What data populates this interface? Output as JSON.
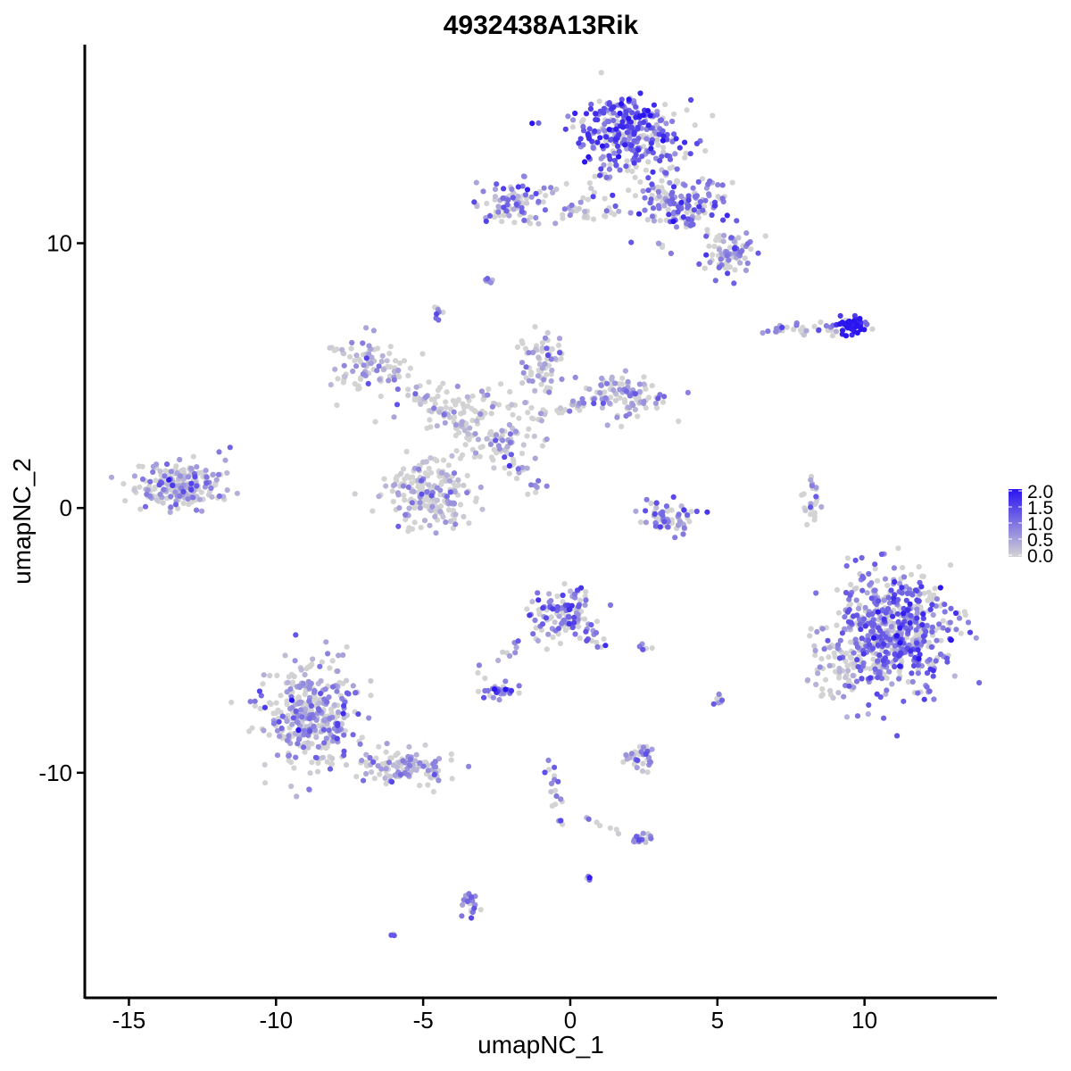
{
  "chart_data": {
    "type": "scatter",
    "title": "4932438A13Rik",
    "xlabel": "umapNC_1",
    "ylabel": "umapNC_2",
    "xlim": [
      -16.5,
      14.5
    ],
    "ylim": [
      -18.5,
      17.5
    ],
    "x_ticks": [
      -15,
      -10,
      -5,
      0,
      5,
      10
    ],
    "x_tick_labels": [
      "-15",
      "-10",
      "-5",
      "0",
      "5",
      "10"
    ],
    "y_ticks": [
      -10,
      0,
      10
    ],
    "y_tick_labels": [
      "-10",
      "0",
      "10"
    ],
    "grid": false,
    "legend_position": "right",
    "color_scale": {
      "low_color": "#d3d3d3",
      "high_color": "#2a14f0",
      "min": 0.0,
      "max": 2.0,
      "breaks": [
        0.0,
        0.5,
        1.0,
        1.5,
        2.0
      ],
      "break_labels": [
        "0.0",
        "0.5",
        "1.0",
        "1.5",
        "2.0"
      ]
    },
    "clusters": [
      {
        "cx": 2.0,
        "cy": 14.2,
        "sx": 1.1,
        "sy": 1.0,
        "n": 320,
        "expr": 1.05
      },
      {
        "cx": 3.8,
        "cy": 11.6,
        "sx": 1.0,
        "sy": 0.6,
        "n": 160,
        "expr": 0.75
      },
      {
        "cx": 5.4,
        "cy": 9.6,
        "sx": 0.6,
        "sy": 0.45,
        "n": 80,
        "expr": 0.55
      },
      {
        "cx": -2.0,
        "cy": 11.5,
        "sx": 0.8,
        "sy": 0.5,
        "n": 90,
        "expr": 0.6
      },
      {
        "cx": 0.5,
        "cy": 11.1,
        "sx": 0.9,
        "sy": 0.2,
        "n": 30,
        "expr": 0.35
      },
      {
        "cx": 9.6,
        "cy": 6.9,
        "sx": 0.4,
        "sy": 0.2,
        "n": 60,
        "expr": 1.6
      },
      {
        "cx": 8.0,
        "cy": 6.8,
        "sx": 0.8,
        "sy": 0.12,
        "n": 30,
        "expr": 0.7
      },
      {
        "cx": -6.7,
        "cy": 5.3,
        "sx": 0.9,
        "sy": 0.6,
        "n": 90,
        "expr": 0.3
      },
      {
        "cx": -1.0,
        "cy": 5.5,
        "sx": 0.5,
        "sy": 0.7,
        "n": 70,
        "expr": 0.4
      },
      {
        "cx": 1.8,
        "cy": 4.2,
        "sx": 0.9,
        "sy": 0.5,
        "n": 110,
        "expr": 0.45
      },
      {
        "cx": -3.8,
        "cy": 3.8,
        "sx": 1.5,
        "sy": 0.6,
        "n": 90,
        "expr": 0.2
      },
      {
        "cx": -2.5,
        "cy": 2.5,
        "sx": 1.2,
        "sy": 0.7,
        "n": 80,
        "expr": 0.2
      },
      {
        "cx": -4.9,
        "cy": 0.6,
        "sx": 0.9,
        "sy": 0.7,
        "n": 200,
        "expr": 0.2
      },
      {
        "cx": -13.3,
        "cy": 0.9,
        "sx": 0.9,
        "sy": 0.55,
        "n": 240,
        "expr": 0.45
      },
      {
        "cx": 3.3,
        "cy": -0.4,
        "sx": 0.7,
        "sy": 0.4,
        "n": 60,
        "expr": 0.8
      },
      {
        "cx": 8.2,
        "cy": 0.2,
        "sx": 0.2,
        "sy": 0.6,
        "n": 25,
        "expr": 0.6
      },
      {
        "cx": 11.0,
        "cy": -4.6,
        "sx": 1.2,
        "sy": 1.4,
        "n": 620,
        "expr": 0.8
      },
      {
        "cx": 8.9,
        "cy": -6.0,
        "sx": 0.6,
        "sy": 0.8,
        "n": 60,
        "expr": 0.3
      },
      {
        "cx": -0.3,
        "cy": -4.0,
        "sx": 0.7,
        "sy": 0.6,
        "n": 120,
        "expr": 0.75
      },
      {
        "cx": -8.8,
        "cy": -7.8,
        "sx": 1.0,
        "sy": 1.2,
        "n": 380,
        "expr": 0.55
      },
      {
        "cx": -5.5,
        "cy": -9.8,
        "sx": 0.9,
        "sy": 0.4,
        "n": 120,
        "expr": 0.4
      },
      {
        "cx": -2.4,
        "cy": -6.9,
        "sx": 0.35,
        "sy": 0.2,
        "n": 35,
        "expr": 0.8
      },
      {
        "cx": 2.4,
        "cy": -9.4,
        "sx": 0.35,
        "sy": 0.3,
        "n": 35,
        "expr": 0.5
      },
      {
        "cx": 2.4,
        "cy": -12.5,
        "sx": 0.3,
        "sy": 0.15,
        "n": 15,
        "expr": 0.6
      },
      {
        "cx": -3.4,
        "cy": -14.9,
        "sx": 0.15,
        "sy": 0.4,
        "n": 25,
        "expr": 0.75
      },
      {
        "cx": 5.0,
        "cy": -7.3,
        "sx": 0.1,
        "sy": 0.2,
        "n": 8,
        "expr": 0.4
      },
      {
        "cx": -2.8,
        "cy": 8.6,
        "sx": 0.1,
        "sy": 0.08,
        "n": 8,
        "expr": 0.7
      },
      {
        "cx": -4.5,
        "cy": 7.4,
        "sx": 0.1,
        "sy": 0.2,
        "n": 8,
        "expr": 0.8
      },
      {
        "cx": -6.0,
        "cy": -16.1,
        "sx": 0.06,
        "sy": 0.05,
        "n": 4,
        "expr": 0.8
      },
      {
        "cx": 0.6,
        "cy": -14.0,
        "sx": 0.05,
        "sy": 0.05,
        "n": 4,
        "expr": 0.9
      }
    ],
    "branches": [
      {
        "x0": -2.5,
        "y0": 2.4,
        "x1": -1.1,
        "y1": 0.7,
        "n": 25,
        "expr": 0.6
      },
      {
        "x0": -5.5,
        "y0": 4.5,
        "x1": -3.3,
        "y1": 2.8,
        "n": 25,
        "expr": 0.25
      },
      {
        "x0": -1.2,
        "y0": 3.4,
        "x1": 0.5,
        "y1": 4.0,
        "n": 25,
        "expr": 0.3
      },
      {
        "x0": -3.2,
        "y0": -6.3,
        "x1": -1.2,
        "y1": -4.8,
        "n": 14,
        "expr": 0.5
      },
      {
        "x0": -0.8,
        "y0": -9.4,
        "x1": -0.3,
        "y1": -12.3,
        "n": 18,
        "expr": 0.4
      },
      {
        "x0": 0.4,
        "y0": -11.5,
        "x1": 2.3,
        "y1": -12.6,
        "n": 14,
        "expr": 0.45
      },
      {
        "x0": 0.0,
        "y0": 11.2,
        "x1": 1.4,
        "y1": 12.8,
        "n": 14,
        "expr": 0.35
      },
      {
        "x0": 0.4,
        "y0": -4.5,
        "x1": 1.3,
        "y1": -5.5,
        "n": 12,
        "expr": 0.7
      },
      {
        "x0": 2.4,
        "y0": -5.3,
        "x1": 3.0,
        "y1": -5.0,
        "n": 6,
        "expr": 0.6
      },
      {
        "x0": 3.3,
        "y0": 9.8,
        "x1": 3.1,
        "y1": 10.2,
        "n": 5,
        "expr": 0.6
      }
    ]
  }
}
